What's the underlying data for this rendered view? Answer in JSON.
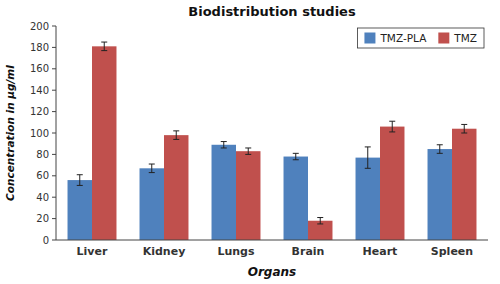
{
  "chart_data": {
    "type": "bar",
    "title": "Biodistribution studies",
    "xlabel": "Organs",
    "ylabel": "Concentration in µg/ml",
    "categories": [
      "Liver",
      "Kidney",
      "Lungs",
      "Brain",
      "Heart",
      "Spleen"
    ],
    "series": [
      {
        "name": "TMZ-PLA",
        "color": "#4f81bd",
        "values": [
          56,
          67,
          89,
          78,
          77,
          85
        ],
        "errors": [
          5,
          4,
          3,
          3,
          10,
          4
        ]
      },
      {
        "name": "TMZ",
        "color": "#c0504d",
        "values": [
          181,
          98,
          83,
          18,
          106,
          104
        ],
        "errors": [
          4,
          4,
          3,
          3,
          5,
          4
        ]
      }
    ],
    "ylim": [
      0,
      200
    ],
    "yticks": [
      0,
      20,
      40,
      60,
      80,
      100,
      120,
      140,
      160,
      180,
      200
    ],
    "grid": false,
    "legend": "upper right"
  }
}
